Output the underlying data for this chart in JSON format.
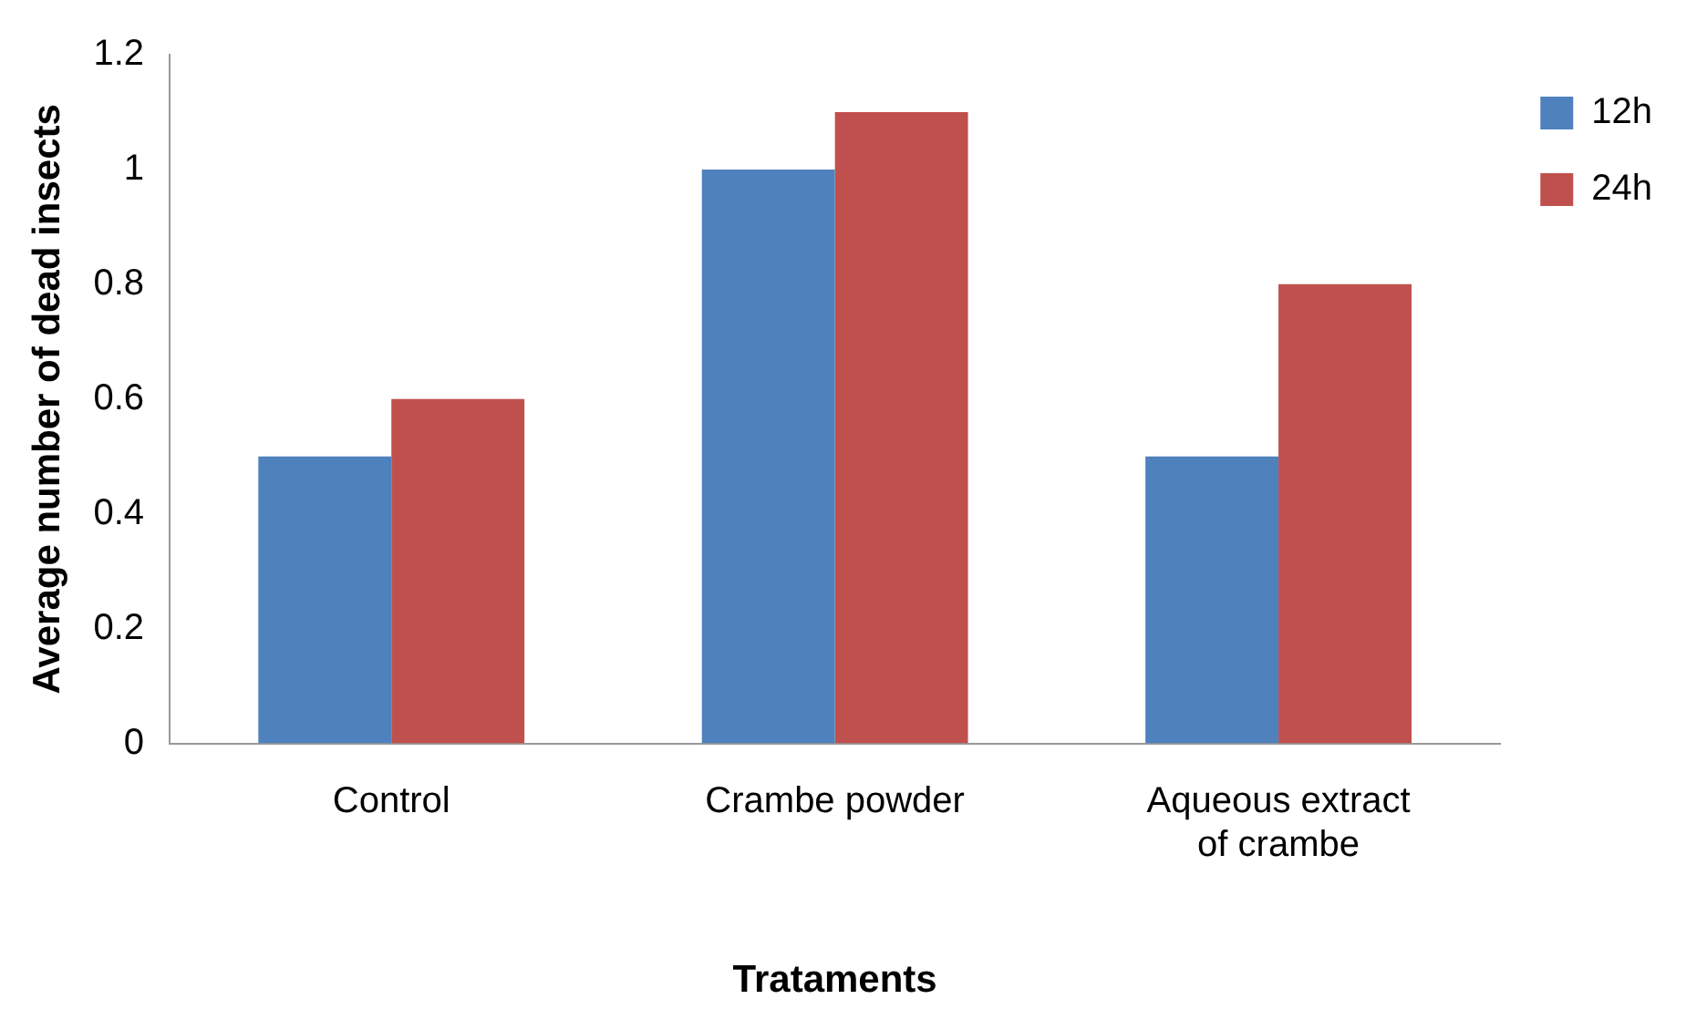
{
  "chart_data": {
    "type": "bar",
    "xlabel": "Trataments",
    "ylabel": "Average number of dead insects",
    "categories": [
      "Control",
      "Crambe powder",
      "Aqueous extract of crambe"
    ],
    "series": [
      {
        "name": "12h",
        "color": "#4f81bd",
        "values": [
          0.5,
          1.0,
          0.5
        ]
      },
      {
        "name": "24h",
        "color": "#c0504d",
        "values": [
          0.6,
          1.1,
          0.8
        ]
      }
    ],
    "ylim": [
      0,
      1.2
    ],
    "yticks": [
      0,
      0.2,
      0.4,
      0.6,
      0.8,
      1,
      1.2
    ],
    "grid": false,
    "legend": "top right"
  }
}
